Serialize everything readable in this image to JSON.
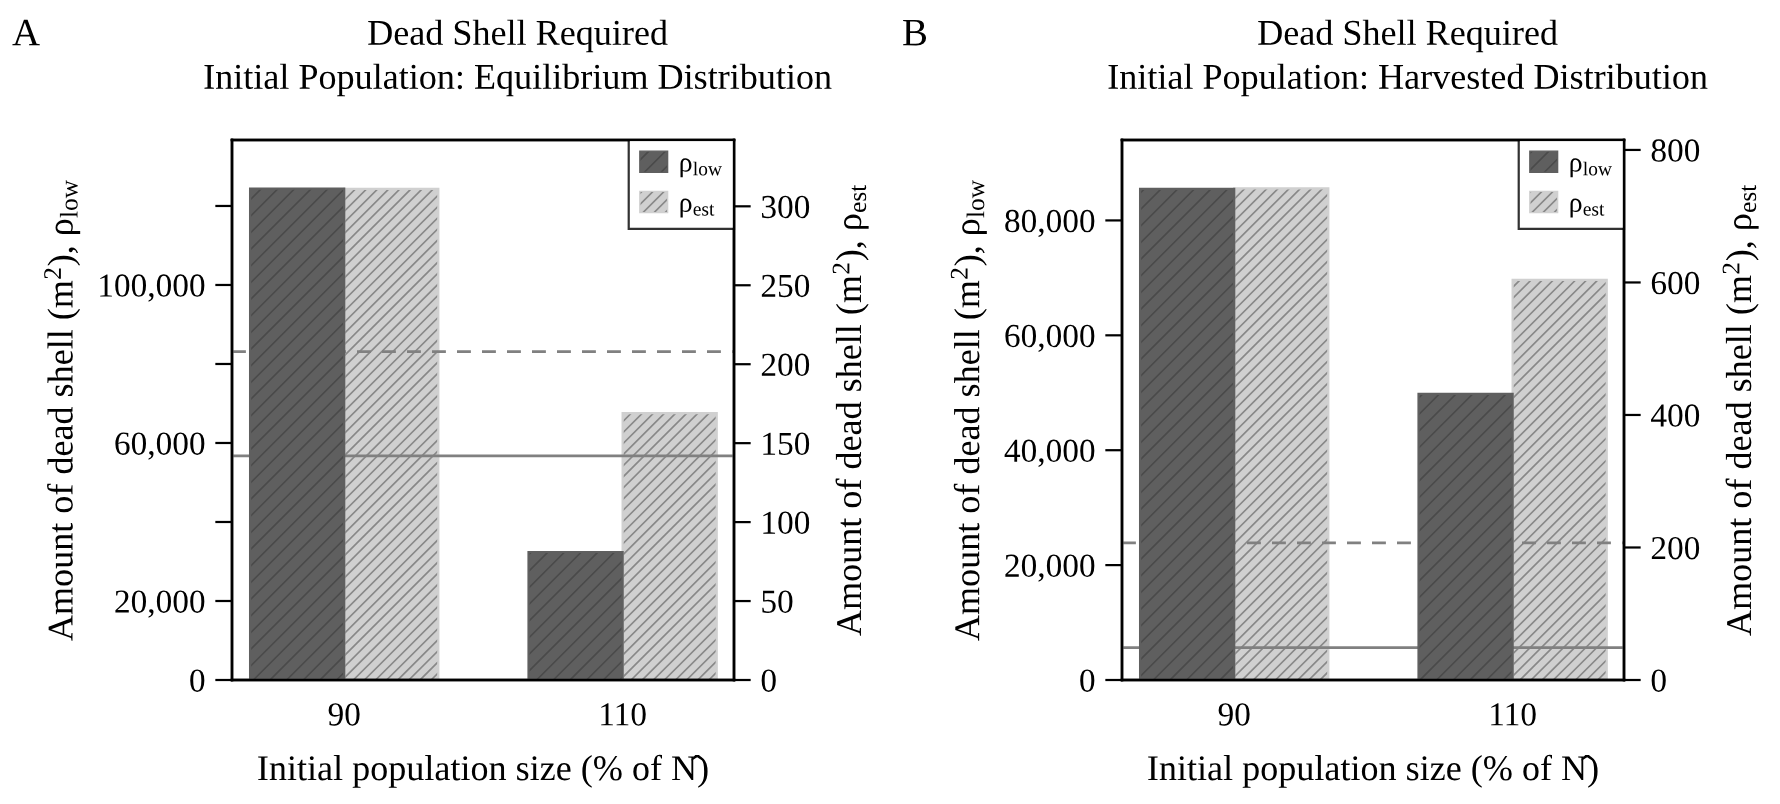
{
  "chart_data": [
    {
      "type": "bar",
      "title": "Dead Shell Required",
      "subtitle": "Initial Population: Equilibrium Distribution",
      "xlabel": "Initial population size (% of N̂)",
      "ylabel": "Amount of dead shell (m$^{2}$), ρ$_{low}$",
      "y2label": "Amount of dead shell (m$^{2}$), ρ$_{est}$",
      "annotations": [
        "A"
      ],
      "categories": [
        "90",
        "110"
      ],
      "series": [
        {
          "name": "ρ$_{low}$",
          "color": "#5f5f5f",
          "values": [
            124400,
            32400
          ]
        },
        {
          "name": "ρ$_{est}$",
          "color": "#d0d0d0",
          "values": [
            311,
            169
          ],
          "axis": "y2"
        }
      ],
      "ylim": [
        0,
        136700
      ],
      "yticks": [
        0,
        {
          "value": 20000,
          "label": "20,000"
        },
        {
          "value": 40000,
          "label": null
        },
        {
          "value": 60000,
          "label": "60,000"
        },
        {
          "value": 80000,
          "label": null
        },
        {
          "value": 100000,
          "label": "100,000"
        },
        {
          "value": 120000,
          "label": null
        }
      ],
      "y2lim": [
        0,
        342
      ],
      "y2ticks": [
        0,
        50,
        100,
        150,
        200,
        250,
        300
      ],
      "ref_lines": [
        {
          "axis": "y2",
          "value": 208,
          "line_style": "dashed",
          "color": "#808080"
        },
        {
          "axis": "y2",
          "value": 142,
          "line_style": "solid",
          "color": "#808080"
        }
      ],
      "legend": "top right",
      "grid": false
    },
    {
      "type": "bar",
      "title": "Dead Shell Required",
      "subtitle": "Initial Population: Harvested Distribution",
      "xlabel": "Initial population size (% of N̂)",
      "ylabel": "Amount of dead shell (m$^{2}$), ρ$_{low}$",
      "y2label": "Amount of dead shell (m$^{2}$), ρ$_{est}$",
      "annotations": [
        "B"
      ],
      "categories": [
        "90",
        "110"
      ],
      "series": [
        {
          "name": "ρ$_{low}$",
          "color": "#5f5f5f",
          "values": [
            85500,
            49800
          ]
        },
        {
          "name": "ρ$_{est}$",
          "color": "#d0d0d0",
          "values": [
            742,
            604
          ],
          "axis": "y2"
        }
      ],
      "ylim": [
        0,
        94000
      ],
      "yticks": [
        0,
        {
          "value": 20000,
          "label": "20,000"
        },
        {
          "value": 40000,
          "label": "40,000"
        },
        {
          "value": 60000,
          "label": "60,000"
        },
        {
          "value": 80000,
          "label": "80,000"
        }
      ],
      "y2lim": [
        0,
        815
      ],
      "y2ticks": [
        0,
        200,
        400,
        600,
        800
      ],
      "ref_lines": [
        {
          "axis": "y2",
          "value": 207,
          "line_style": "dashed",
          "color": "#808080"
        },
        {
          "axis": "y2",
          "value": 49,
          "line_style": "solid",
          "color": "#808080"
        }
      ],
      "legend": "top right",
      "grid": false
    }
  ]
}
